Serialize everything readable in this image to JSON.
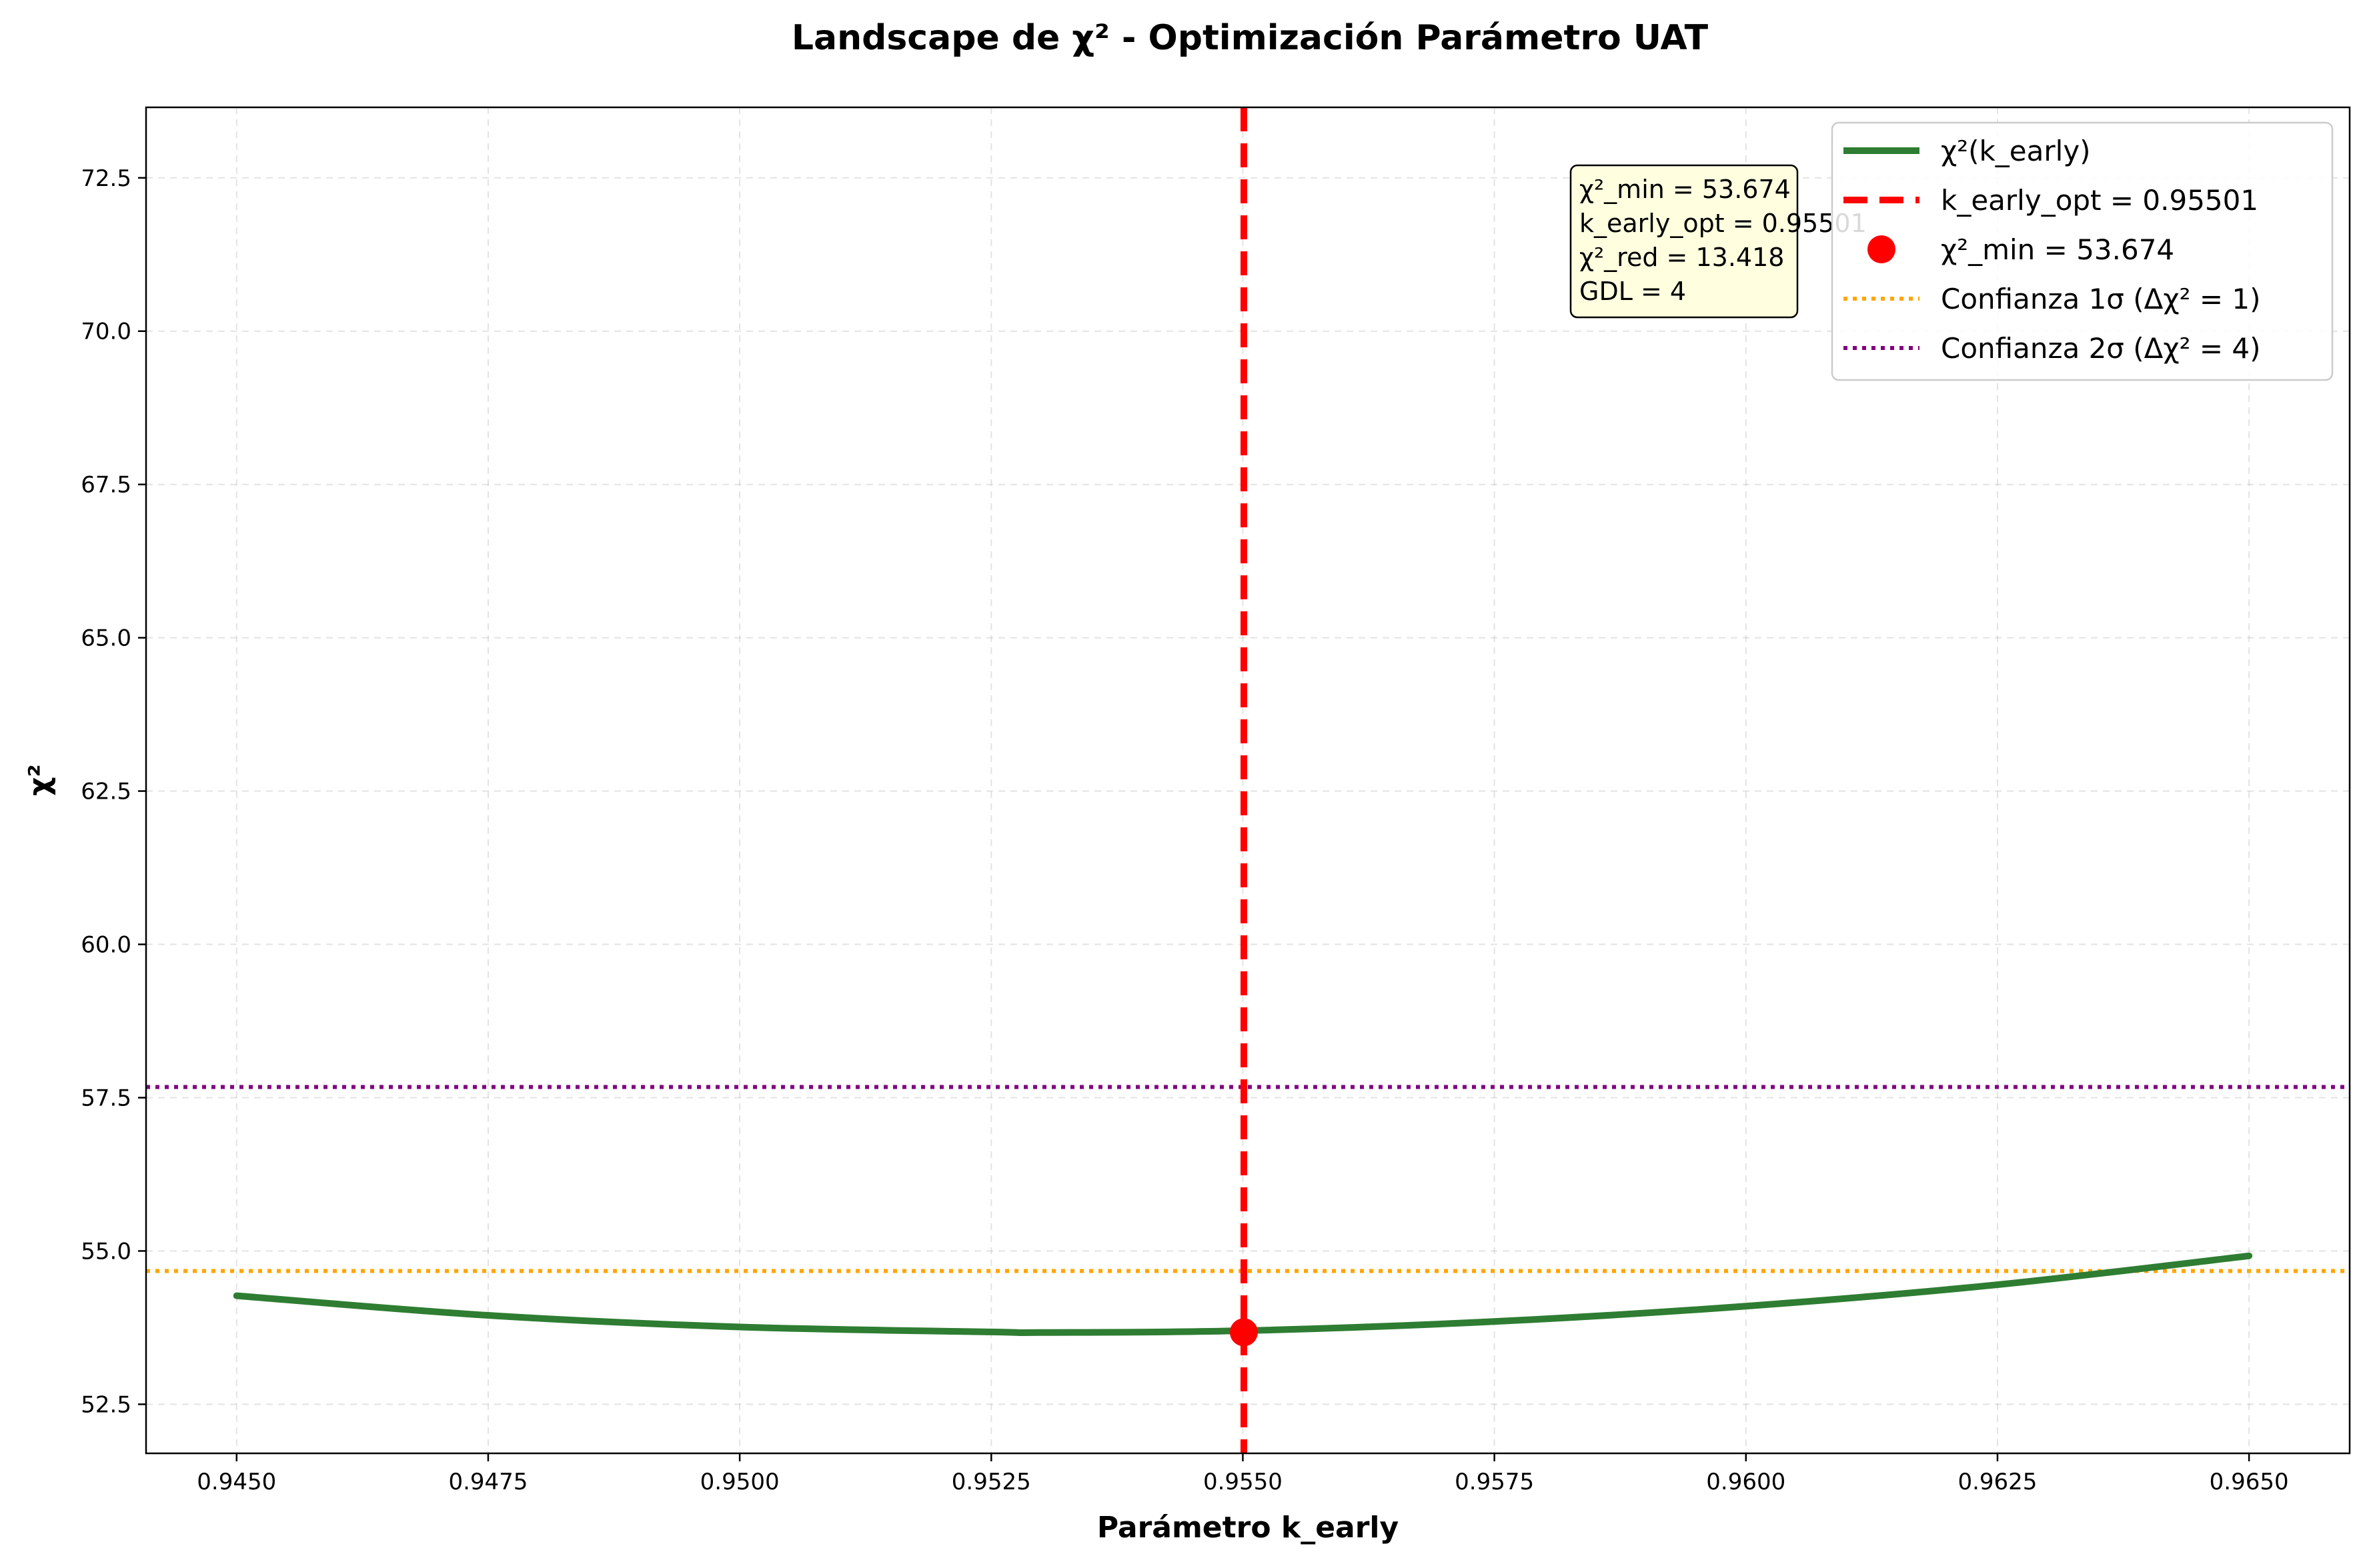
{
  "chart_data": {
    "type": "line",
    "title": "Landscape de χ² - Optimización Parámetro UAT",
    "xlabel": "Parámetro k_early",
    "ylabel": "χ²",
    "xlim": [
      0.9441,
      0.966
    ],
    "ylim": [
      51.7,
      73.65
    ],
    "xticks": [
      0.945,
      0.9475,
      0.95,
      0.9525,
      0.955,
      0.9575,
      0.96,
      0.9625,
      0.965
    ],
    "xtick_labels": [
      "0.9450",
      "0.9475",
      "0.9500",
      "0.9525",
      "0.9550",
      "0.9575",
      "0.9600",
      "0.9625",
      "0.9650"
    ],
    "yticks": [
      52.5,
      55.0,
      57.5,
      60.0,
      62.5,
      65.0,
      67.5,
      70.0,
      72.5
    ],
    "ytick_labels": [
      "52.5",
      "55.0",
      "57.5",
      "60.0",
      "62.5",
      "65.0",
      "67.5",
      "70.0",
      "72.5"
    ],
    "grid": true,
    "legend_position": "top-right",
    "series": [
      {
        "name": "χ²(k_early)",
        "color": "#2e7d32",
        "style": "solid",
        "x": [
          0.945,
          0.9475,
          0.95,
          0.9525,
          0.953,
          0.955,
          0.9575,
          0.96,
          0.9625,
          0.965
        ],
        "y": [
          54.27,
          53.95,
          53.76,
          53.68,
          53.67,
          53.7,
          53.85,
          54.1,
          54.45,
          54.92
        ]
      }
    ],
    "vline": {
      "name": "k_early_opt = 0.95501",
      "x": 0.95501,
      "color": "#ff0000",
      "style": "dashed"
    },
    "min_point": {
      "name": "χ²_min = 53.674",
      "x": 0.95501,
      "y": 53.674,
      "color": "#ff0000"
    },
    "hlines": [
      {
        "name": "Confianza 1σ (Δχ² = 1)",
        "y": 54.674,
        "color": "#ffa500",
        "style": "dotted"
      },
      {
        "name": "Confianza 2σ (Δχ² = 4)",
        "y": 57.674,
        "color": "#800080",
        "style": "dotted"
      }
    ],
    "annotation": {
      "lines": [
        "χ²_min = 53.674",
        "k_early_opt = 0.95501",
        "χ²_red = 13.418",
        "GDL = 4"
      ],
      "background": "#ffffe0"
    }
  }
}
